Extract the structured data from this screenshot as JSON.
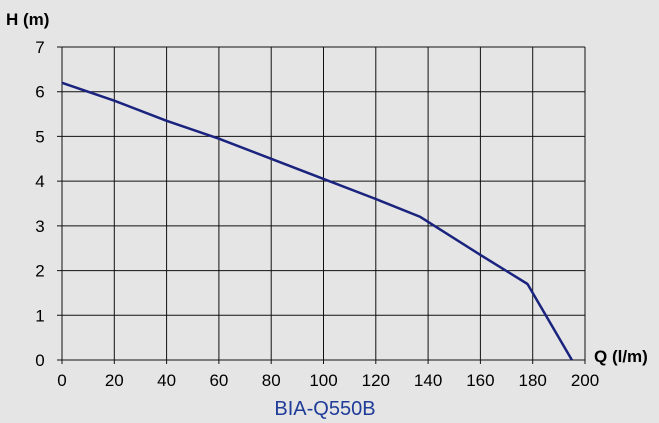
{
  "chart_data": {
    "type": "line",
    "title": "BIA-Q550B",
    "xlabel": "Q (l/m)",
    "ylabel": "H (m)",
    "xlim": [
      0,
      200
    ],
    "ylim": [
      0,
      7
    ],
    "xticks": [
      0,
      20,
      40,
      60,
      80,
      100,
      120,
      140,
      160,
      180,
      200
    ],
    "yticks": [
      0,
      1,
      2,
      3,
      4,
      5,
      6,
      7
    ],
    "grid": true,
    "series": [
      {
        "color": "#1a237e",
        "x": [
          0,
          20,
          40,
          60,
          80,
          100,
          120,
          137,
          160,
          178,
          195
        ],
        "y": [
          6.2,
          5.8,
          5.35,
          4.95,
          4.5,
          4.05,
          3.6,
          3.2,
          2.35,
          1.7,
          0
        ]
      }
    ]
  }
}
